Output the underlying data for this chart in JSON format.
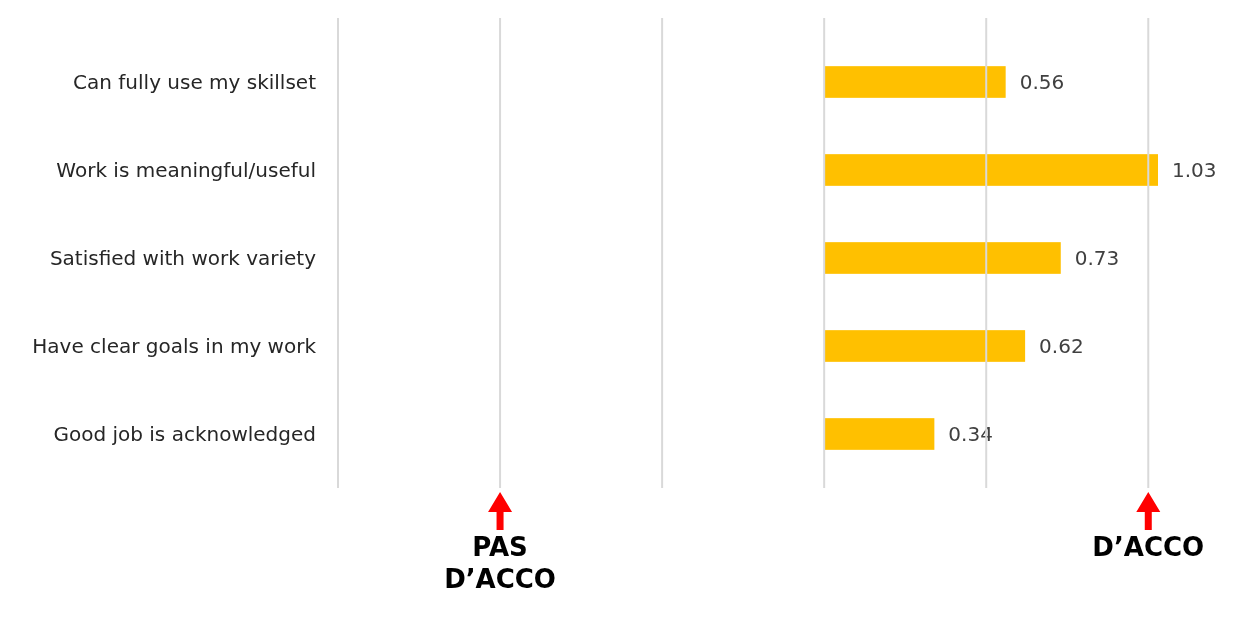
{
  "chart_data": {
    "type": "bar",
    "orientation": "horizontal",
    "categories": [
      "Can fully use my skillset",
      "Work is meaningful/useful",
      "Satisfied with work variety",
      "Have clear goals in my work",
      "Good job is acknowledged"
    ],
    "values": [
      0.56,
      1.03,
      0.73,
      0.62,
      0.34
    ],
    "color": "#ffc000",
    "data_labels": true,
    "ref_lines": [
      {
        "axis": "x",
        "value": -1.5,
        "color": "#d9d9d9"
      },
      {
        "axis": "x",
        "value": -1,
        "label": "PAS D’ACCO",
        "color": "#d9d9d9"
      },
      {
        "axis": "x",
        "value": -0.5,
        "color": "#d9d9d9"
      },
      {
        "axis": "x",
        "value": 0,
        "color": "#d9d9d9"
      },
      {
        "axis": "x",
        "value": 0.5,
        "color": "#d9d9d9"
      },
      {
        "axis": "x",
        "value": 1,
        "label": "D’ACCO",
        "color": "#d9d9d9"
      }
    ],
    "tick_labels": "y"
  }
}
